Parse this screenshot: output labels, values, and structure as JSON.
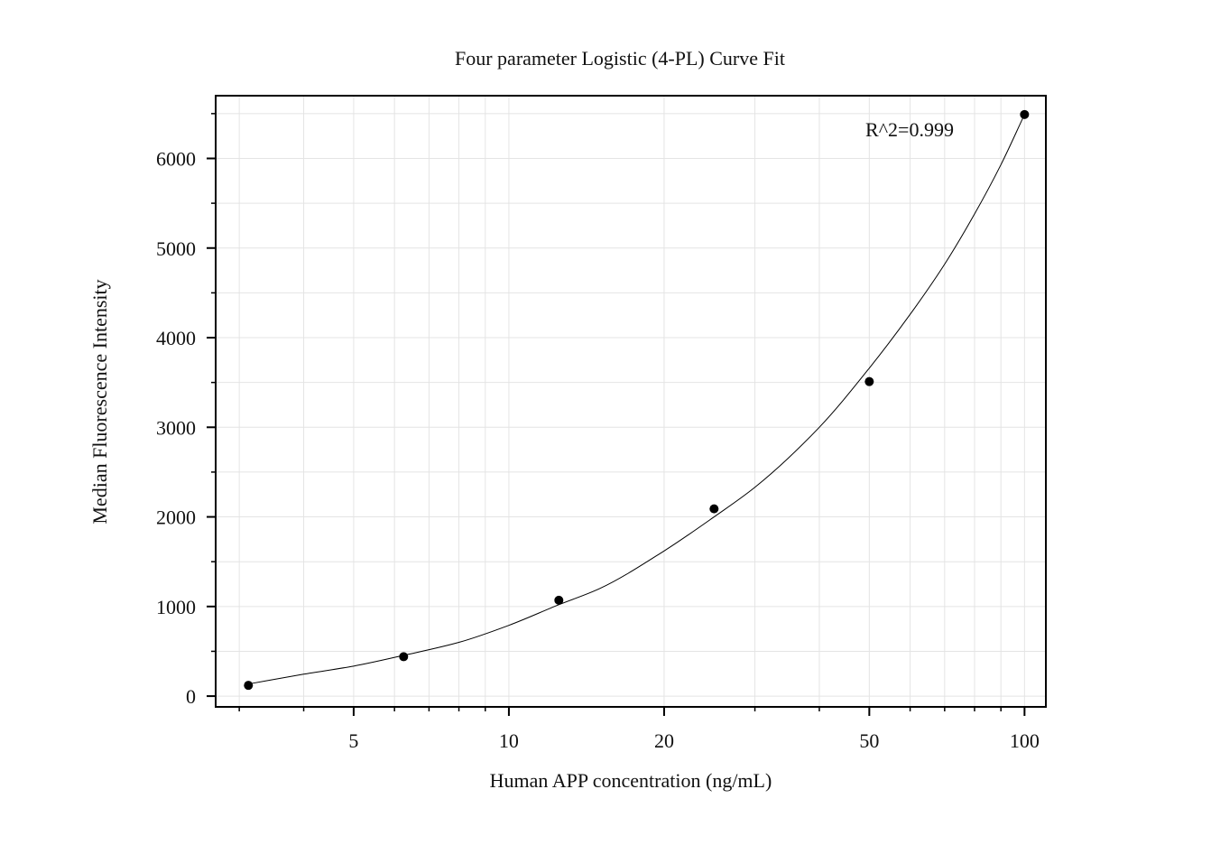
{
  "chart_data": {
    "type": "scatter",
    "title": "Four parameter Logistic (4-PL) Curve Fit",
    "xlabel": "Human APP concentration (ng/mL)",
    "ylabel": "Median Fluorescence Intensity",
    "x_scale": "log",
    "xlim": [
      2.7,
      110
    ],
    "ylim": [
      -120,
      6700
    ],
    "x_ticks": [
      5,
      10,
      20,
      50,
      100
    ],
    "x_tick_labels": [
      "5",
      "10",
      "20",
      "50",
      "100"
    ],
    "y_ticks": [
      0,
      1000,
      2000,
      3000,
      4000,
      5000,
      6000
    ],
    "y_tick_labels": [
      "0",
      "1000",
      "2000",
      "3000",
      "4000",
      "5000",
      "6000"
    ],
    "grid": true,
    "series": [
      {
        "type": "scatter",
        "x": [
          3.125,
          6.25,
          12.5,
          25,
          50,
          100
        ],
        "y": [
          120,
          440,
          1070,
          2090,
          3510,
          6490
        ],
        "color": "#000000"
      },
      {
        "type": "line",
        "x": [
          3.125,
          4,
          5,
          6.25,
          8,
          10,
          12.5,
          15,
          20,
          25,
          30,
          40,
          50,
          60,
          70,
          80,
          90,
          100
        ],
        "y": [
          135,
          245,
          335,
          455,
          600,
          790,
          1020,
          1200,
          1620,
          2000,
          2330,
          3000,
          3660,
          4260,
          4820,
          5380,
          5930,
          6490
        ],
        "color": "#000000"
      }
    ],
    "annotations": [
      {
        "text": "R^2=0.999"
      }
    ]
  }
}
